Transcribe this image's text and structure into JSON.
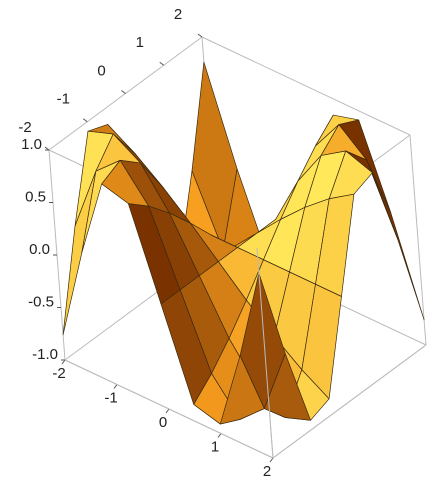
{
  "chart_data": {
    "type": "surface",
    "x": [
      -2,
      -1.5,
      -1,
      -0.5,
      0,
      0.5,
      1,
      1.5,
      2
    ],
    "y": [
      -2,
      -1.5,
      -1,
      -0.5,
      0,
      0.5,
      1,
      1.5,
      2
    ],
    "z": [
      [
        -0.76,
        0.14,
        0.91,
        0.84,
        0,
        -0.84,
        -0.91,
        -0.14,
        0.76
      ],
      [
        0.14,
        0.78,
        1.0,
        0.68,
        0,
        -0.68,
        -1.0,
        -0.78,
        -0.14
      ],
      [
        0.91,
        1.0,
        0.84,
        0.48,
        0,
        -0.48,
        -0.84,
        -1.0,
        -0.91
      ],
      [
        0.84,
        0.68,
        0.48,
        0.25,
        0,
        -0.25,
        -0.48,
        -0.68,
        -0.84
      ],
      [
        0,
        0,
        0,
        0,
        0,
        0,
        0,
        0,
        0
      ],
      [
        -0.84,
        -0.68,
        -0.48,
        -0.25,
        0,
        0.25,
        0.48,
        0.68,
        0.84
      ],
      [
        -0.91,
        -1.0,
        -0.84,
        -0.48,
        0,
        0.48,
        0.84,
        1.0,
        0.91
      ],
      [
        -0.14,
        -0.78,
        -1.0,
        -0.68,
        0,
        0.68,
        1.0,
        0.78,
        0.14
      ],
      [
        0.76,
        -0.14,
        -0.91,
        -0.84,
        0,
        0.84,
        0.91,
        0.14,
        -0.76
      ]
    ],
    "xlim": [
      -2,
      2
    ],
    "ylim": [
      -2,
      2
    ],
    "zlim": [
      -1,
      1
    ],
    "xticks": [
      -2,
      -1,
      0,
      1,
      2
    ],
    "yticks": [
      -2,
      -1,
      0,
      1,
      2
    ],
    "zticks": [
      {
        "value": 1,
        "label": "1.0"
      },
      {
        "value": 0.5,
        "label": "0.5"
      },
      {
        "value": 0,
        "label": "0.0"
      },
      {
        "value": -0.5,
        "label": "-0.5"
      },
      {
        "value": -1,
        "label": "-1.0"
      }
    ],
    "color": "#f59b1e"
  }
}
